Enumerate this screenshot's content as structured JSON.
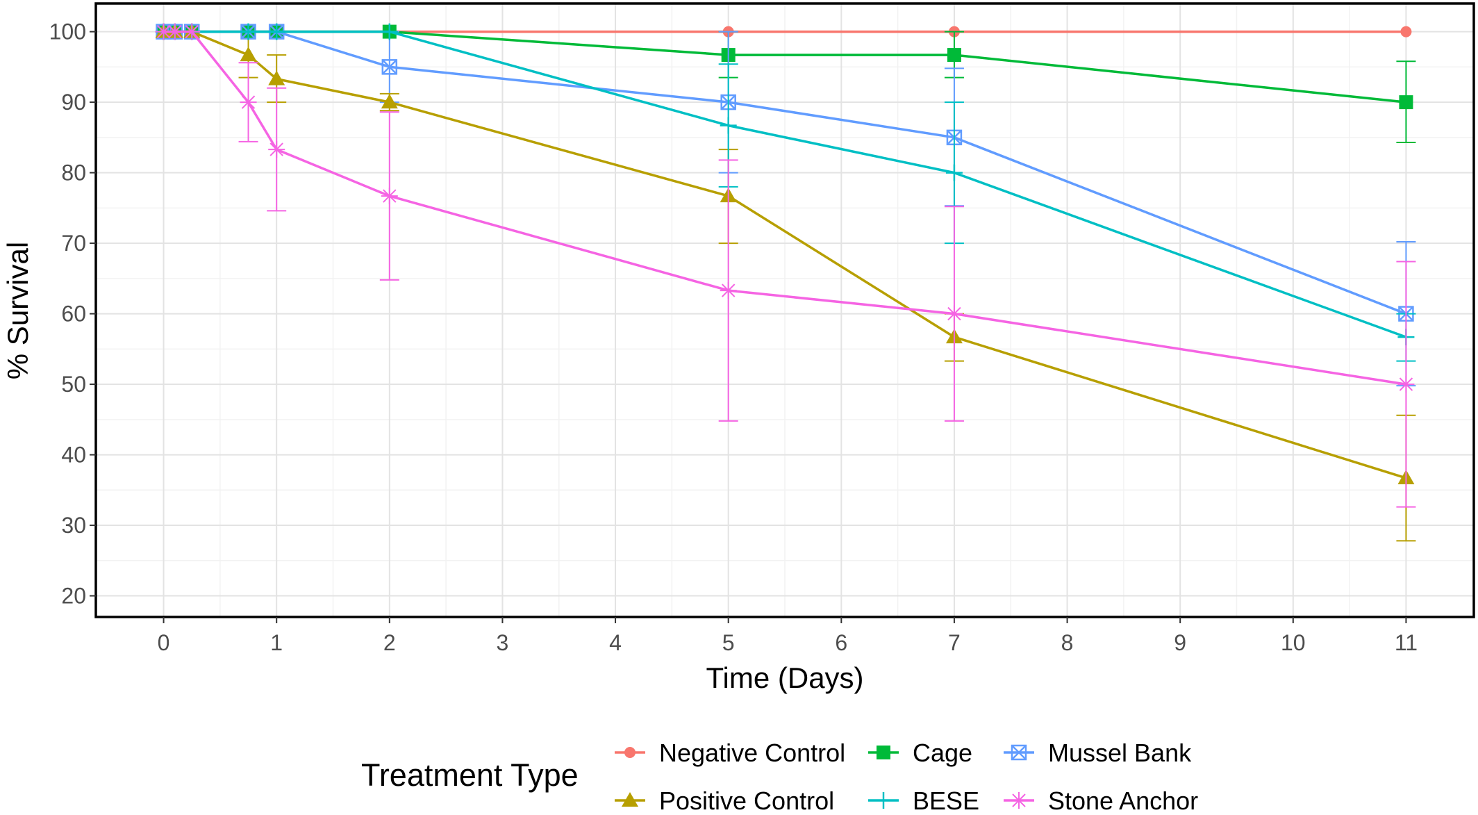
{
  "chart_data": {
    "type": "line",
    "xlabel": "Time (Days)",
    "ylabel": "% Survival",
    "xlim": [
      -0.6,
      11.6
    ],
    "ylim": [
      17,
      104
    ],
    "x_ticks": [
      0,
      1,
      2,
      3,
      4,
      5,
      6,
      7,
      8,
      9,
      10,
      11
    ],
    "y_ticks": [
      20,
      30,
      40,
      50,
      60,
      70,
      80,
      90,
      100
    ],
    "grid": true,
    "legend": {
      "title": "Treatment Type",
      "position": "bottom"
    },
    "error_bars": true,
    "series": [
      {
        "name": "Negative Control",
        "color": "#F8766D",
        "marker": "circle",
        "points": [
          {
            "x": 0,
            "y": 100
          },
          {
            "x": 0.1,
            "y": 100
          },
          {
            "x": 0.25,
            "y": 100
          },
          {
            "x": 0.75,
            "y": 100
          },
          {
            "x": 1,
            "y": 100
          },
          {
            "x": 2,
            "y": 100
          },
          {
            "x": 5,
            "y": 100
          },
          {
            "x": 7,
            "y": 100
          },
          {
            "x": 11,
            "y": 100
          }
        ]
      },
      {
        "name": "Cage",
        "color": "#00BA38",
        "marker": "square-filled",
        "points": [
          {
            "x": 0,
            "y": 100
          },
          {
            "x": 0.1,
            "y": 100
          },
          {
            "x": 0.25,
            "y": 100
          },
          {
            "x": 0.75,
            "y": 100
          },
          {
            "x": 1,
            "y": 100
          },
          {
            "x": 2,
            "y": 100
          },
          {
            "x": 5,
            "y": 96.7,
            "lo": 93.5,
            "hi": 100
          },
          {
            "x": 7,
            "y": 96.7,
            "lo": 93.5,
            "hi": 100
          },
          {
            "x": 11,
            "y": 90,
            "lo": 84.3,
            "hi": 95.8
          }
        ]
      },
      {
        "name": "Mussel Bank",
        "color": "#619CFF",
        "marker": "square-cross",
        "points": [
          {
            "x": 0,
            "y": 100
          },
          {
            "x": 0.1,
            "y": 100
          },
          {
            "x": 0.25,
            "y": 100
          },
          {
            "x": 0.75,
            "y": 100
          },
          {
            "x": 1,
            "y": 100
          },
          {
            "x": 2,
            "y": 95,
            "lo": 90,
            "hi": 100
          },
          {
            "x": 5,
            "y": 90,
            "lo": 80,
            "hi": 100
          },
          {
            "x": 7,
            "y": 85,
            "lo": 75.3,
            "hi": 94.8
          },
          {
            "x": 11,
            "y": 60,
            "lo": 49.8,
            "hi": 70.2
          }
        ]
      },
      {
        "name": "Positive Control",
        "color": "#B79F00",
        "marker": "triangle",
        "points": [
          {
            "x": 0,
            "y": 100
          },
          {
            "x": 0.1,
            "y": 100
          },
          {
            "x": 0.25,
            "y": 100
          },
          {
            "x": 0.75,
            "y": 96.7,
            "lo": 93.5,
            "hi": 100
          },
          {
            "x": 1,
            "y": 93.3,
            "lo": 90,
            "hi": 96.7
          },
          {
            "x": 2,
            "y": 90,
            "lo": 88.8,
            "hi": 91.2
          },
          {
            "x": 5,
            "y": 76.7,
            "lo": 70,
            "hi": 83.3
          },
          {
            "x": 7,
            "y": 56.7,
            "lo": 53.3,
            "hi": 60
          },
          {
            "x": 11,
            "y": 36.7,
            "lo": 27.8,
            "hi": 45.6
          }
        ]
      },
      {
        "name": "BESE",
        "color": "#00BFC4",
        "marker": "plus",
        "points": [
          {
            "x": 0,
            "y": 100
          },
          {
            "x": 0.1,
            "y": 100
          },
          {
            "x": 0.25,
            "y": 100
          },
          {
            "x": 0.75,
            "y": 100
          },
          {
            "x": 1,
            "y": 100
          },
          {
            "x": 2,
            "y": 100
          },
          {
            "x": 5,
            "y": 86.7,
            "lo": 78,
            "hi": 95.4
          },
          {
            "x": 7,
            "y": 80,
            "lo": 70,
            "hi": 90
          },
          {
            "x": 11,
            "y": 56.7,
            "lo": 53.3,
            "hi": 60
          }
        ]
      },
      {
        "name": "Stone Anchor",
        "color": "#F564E3",
        "marker": "star",
        "points": [
          {
            "x": 0,
            "y": 100
          },
          {
            "x": 0.1,
            "y": 100
          },
          {
            "x": 0.25,
            "y": 100
          },
          {
            "x": 0.75,
            "y": 90,
            "lo": 84.4,
            "hi": 95.6
          },
          {
            "x": 1,
            "y": 83.3,
            "lo": 74.6,
            "hi": 92
          },
          {
            "x": 2,
            "y": 76.7,
            "lo": 64.8,
            "hi": 88.6
          },
          {
            "x": 5,
            "y": 63.3,
            "lo": 44.8,
            "hi": 81.8
          },
          {
            "x": 7,
            "y": 60,
            "lo": 44.8,
            "hi": 75.2
          },
          {
            "x": 11,
            "y": 50,
            "lo": 32.6,
            "hi": 67.4
          }
        ]
      }
    ]
  }
}
